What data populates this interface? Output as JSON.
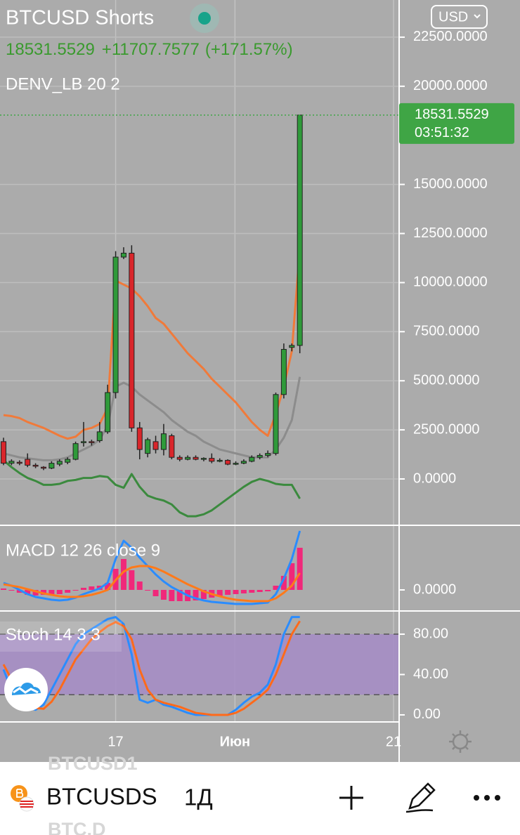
{
  "header": {
    "title": "BTCUSD Shorts",
    "price": "18531.5529",
    "change": "+11707.7577",
    "change_pct": "(+171.57%)",
    "currency": "USD"
  },
  "chart_data": [
    {
      "type": "candlestick",
      "indicator": "DENV_LB 20 2",
      "x": [
        0,
        1,
        2,
        3,
        4,
        5,
        6,
        7,
        8,
        9,
        10,
        11,
        12,
        13,
        14,
        15,
        16,
        17,
        18,
        19,
        20,
        21,
        22,
        23,
        24,
        25,
        26,
        27,
        28,
        29,
        30,
        31,
        32,
        33,
        34,
        35,
        36,
        37
      ],
      "open": [
        1900,
        800,
        850,
        1000,
        700,
        600,
        550,
        750,
        850,
        1000,
        1850,
        1900,
        1950,
        2400,
        4400,
        11300,
        11500,
        2600,
        1300,
        1900,
        1500,
        2200,
        1100,
        1000,
        1100,
        1000,
        1050,
        900,
        950,
        750,
        800,
        900,
        1100,
        1200,
        1300,
        4300,
        6700,
        6800
      ],
      "high": [
        2100,
        1000,
        950,
        1300,
        800,
        650,
        900,
        1000,
        1100,
        1900,
        2900,
        2000,
        2900,
        4800,
        11600,
        11800,
        11900,
        2900,
        2100,
        2200,
        2800,
        2300,
        1200,
        1200,
        1200,
        1100,
        1300,
        1050,
        1000,
        900,
        1000,
        1200,
        1300,
        1450,
        4400,
        6900,
        6900,
        18531.5529
      ],
      "low": [
        700,
        700,
        700,
        600,
        550,
        450,
        500,
        650,
        750,
        950,
        1650,
        1700,
        1850,
        2300,
        4100,
        11200,
        2400,
        1000,
        1100,
        1300,
        1200,
        1000,
        900,
        950,
        950,
        900,
        800,
        850,
        700,
        700,
        750,
        850,
        1000,
        1100,
        1200,
        4100,
        6500,
        6400
      ],
      "close": [
        800,
        900,
        800,
        700,
        650,
        550,
        800,
        900,
        1000,
        1800,
        1900,
        1850,
        2400,
        4400,
        11300,
        11500,
        2600,
        1500,
        2000,
        1500,
        2300,
        1100,
        1000,
        1100,
        1000,
        1050,
        900,
        950,
        750,
        800,
        900,
        1100,
        1200,
        1300,
        4300,
        6600,
        6800,
        18531.5529
      ],
      "up_color": "#2f9a3a",
      "down_color": "#d9262b",
      "series": [
        {
          "color": "#f07a3a",
          "values": [
            3250,
            3200,
            3100,
            2900,
            2750,
            2600,
            2400,
            2200,
            2050,
            2150,
            2500,
            2600,
            2800,
            3600,
            10100,
            9900,
            9700,
            9300,
            8800,
            8200,
            7900,
            7400,
            6900,
            6400,
            6000,
            5600,
            5100,
            4700,
            4300,
            3900,
            3400,
            2900,
            2500,
            2200,
            3300,
            4700,
            6500,
            11700
          ]
        },
        {
          "color": "#8c8c8c",
          "values": [
            1300,
            1200,
            1100,
            1050,
            1000,
            950,
            950,
            1000,
            1100,
            1300,
            1500,
            1700,
            2000,
            2700,
            4700,
            4900,
            4700,
            4300,
            4000,
            3700,
            3400,
            3000,
            2700,
            2400,
            2200,
            1900,
            1700,
            1500,
            1400,
            1300,
            1200,
            1100,
            1100,
            1100,
            1500,
            2100,
            3000,
            5200
          ]
        },
        {
          "color": "#3b8a3e",
          "values": [
            950,
            600,
            300,
            50,
            -100,
            -300,
            -300,
            -250,
            -100,
            -50,
            50,
            50,
            150,
            100,
            -300,
            -450,
            250,
            -400,
            -850,
            -1000,
            -1100,
            -1300,
            -1700,
            -1900,
            -1900,
            -1800,
            -1600,
            -1300,
            -1000,
            -700,
            -400,
            -150,
            0,
            -100,
            -250,
            -300,
            -300,
            -1000
          ]
        }
      ],
      "last_price": {
        "value": 18531.5529,
        "label": "18531.5529",
        "timer": "03:51:32",
        "color": "#3fa545"
      },
      "xlim": [
        -0.44,
        49.4
      ],
      "ylim": [
        -2361,
        24393
      ],
      "yticks": [
        {
          "value": 22500,
          "label": "22500.0000"
        },
        {
          "value": 20000,
          "label": "20000.0000"
        },
        {
          "value": 15000,
          "label": "15000.0000"
        },
        {
          "value": 12500,
          "label": "12500.0000"
        },
        {
          "value": 10000,
          "label": "10000.0000"
        },
        {
          "value": 7500,
          "label": "7500.0000"
        },
        {
          "value": 5000,
          "label": "5000.0000"
        },
        {
          "value": 2500,
          "label": "2500.0000"
        },
        {
          "value": 0,
          "label": "0.0000"
        }
      ],
      "grid": true
    },
    {
      "type": "macd",
      "title": "MACD 12 26 close 9",
      "histogram": {
        "color": "#f0287a",
        "values": [
          100,
          0,
          -200,
          -350,
          -400,
          -350,
          -350,
          -300,
          -200,
          -50,
          150,
          250,
          300,
          500,
          1500,
          2200,
          1400,
          600,
          0,
          -450,
          -700,
          -800,
          -800,
          -800,
          -750,
          -650,
          -550,
          -450,
          -350,
          -300,
          -250,
          -200,
          -150,
          -100,
          300,
          1000,
          1900,
          3000
        ]
      },
      "series": [
        {
          "color": "#2a8cff",
          "values": [
            500,
            300,
            0,
            -300,
            -500,
            -600,
            -700,
            -750,
            -700,
            -550,
            -300,
            -100,
            100,
            500,
            2200,
            3500,
            3000,
            2300,
            1700,
            1100,
            600,
            200,
            -100,
            -400,
            -600,
            -750,
            -850,
            -900,
            -950,
            -1000,
            -1000,
            -1000,
            -950,
            -900,
            -300,
            800,
            2200,
            4200
          ]
        },
        {
          "color": "#ff7a1a",
          "values": [
            400,
            300,
            200,
            50,
            -100,
            -250,
            -350,
            -450,
            -500,
            -500,
            -450,
            -350,
            -200,
            0,
            700,
            1300,
            1600,
            1700,
            1700,
            1550,
            1300,
            1000,
            700,
            400,
            150,
            -100,
            -300,
            -450,
            -600,
            -700,
            -750,
            -800,
            -800,
            -800,
            -600,
            -200,
            300,
            1200
          ]
        }
      ],
      "xlim": [
        -0.44,
        49.4
      ],
      "ylim": [
        -1500,
        4600
      ],
      "yticks": [
        {
          "value": 0,
          "label": "0.0000"
        }
      ]
    },
    {
      "type": "stoch",
      "title": "Stoch 14 3 3",
      "band": [
        20,
        80
      ],
      "band_color": "#a58bc6",
      "series": [
        {
          "color": "#2a8cff",
          "values": [
            45,
            25,
            15,
            8,
            5,
            10,
            25,
            40,
            55,
            70,
            80,
            85,
            90,
            95,
            97,
            90,
            60,
            15,
            12,
            15,
            10,
            8,
            5,
            2,
            0,
            0,
            0,
            0,
            0,
            5,
            12,
            18,
            22,
            30,
            50,
            80,
            97,
            97
          ]
        },
        {
          "color": "#ff6a1a",
          "values": [
            50,
            35,
            20,
            12,
            7,
            6,
            13,
            25,
            40,
            55,
            65,
            75,
            82,
            88,
            92,
            88,
            75,
            45,
            25,
            15,
            12,
            10,
            8,
            5,
            2,
            1,
            0,
            0,
            0,
            2,
            6,
            12,
            18,
            25,
            40,
            60,
            80,
            93
          ]
        }
      ],
      "xlim": [
        -0.44,
        49.4
      ],
      "ylim": [
        -7,
        103
      ],
      "yticks": [
        {
          "value": 80,
          "label": "80.00"
        },
        {
          "value": 40,
          "label": "40.00"
        },
        {
          "value": 0,
          "label": "0.00"
        }
      ],
      "xticks": [
        {
          "value": 14.0,
          "label": "17"
        },
        {
          "value": 28.9,
          "label": "Июн"
        },
        {
          "value": 48.7,
          "label": "21"
        }
      ]
    }
  ],
  "toolbar": {
    "symbol": "BTCUSDS",
    "interval": "1Д",
    "ghost_above": "BTCUSD1",
    "ghost_below": "BTC.D"
  }
}
